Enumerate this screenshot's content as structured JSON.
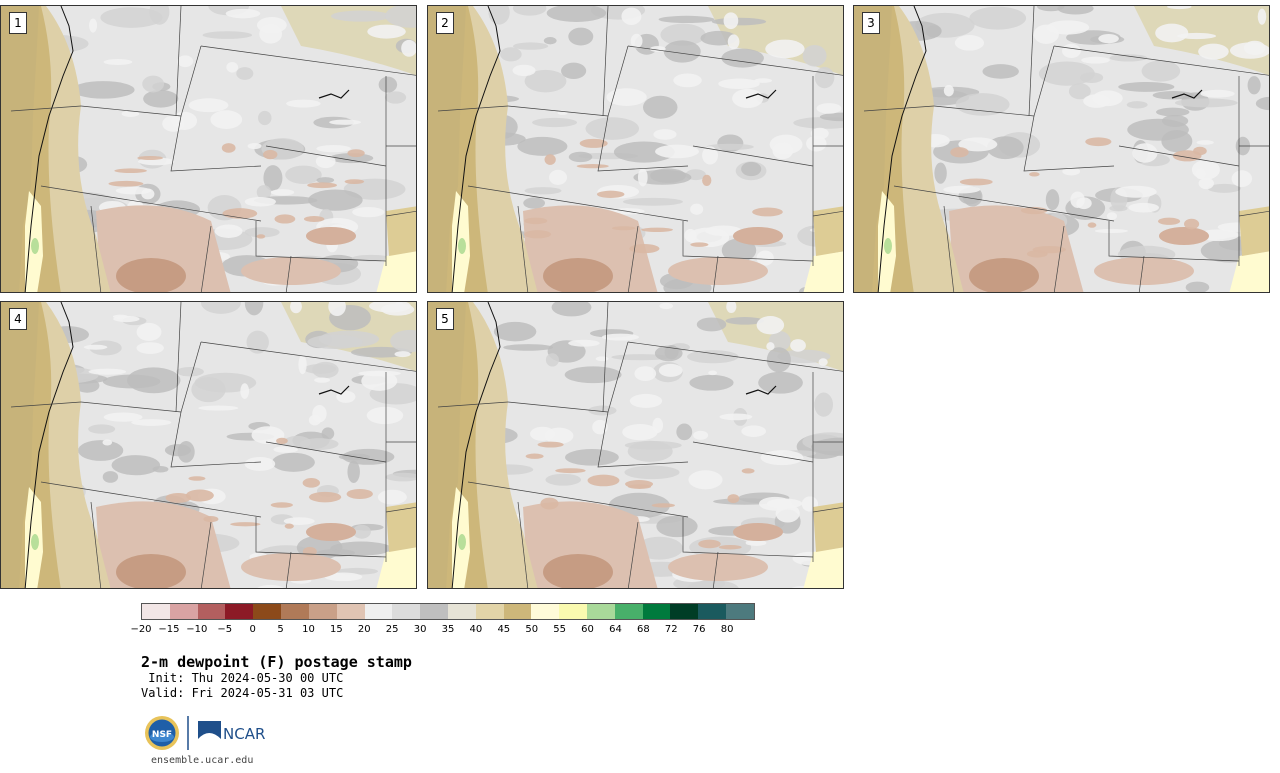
{
  "panels": [
    {
      "label": "1"
    },
    {
      "label": "2"
    },
    {
      "label": "3"
    },
    {
      "label": "4"
    },
    {
      "label": "5"
    }
  ],
  "colorbar": {
    "tick_labels": [
      "−20",
      "−15",
      "−10",
      "−5",
      "0",
      "5",
      "10",
      "15",
      "20",
      "25",
      "30",
      "35",
      "40",
      "45",
      "50",
      "55",
      "60",
      "64",
      "68",
      "72",
      "76",
      "80"
    ],
    "colors": [
      "#f2e6e6",
      "#d9a3a3",
      "#b35f5f",
      "#8c1a26",
      "#8c4a1a",
      "#b07a58",
      "#c9a088",
      "#e0c4b3",
      "#efefef",
      "#dcdcdc",
      "#bfbfbf",
      "#e6e3d6",
      "#e2d4a8",
      "#cdb77a",
      "#fffbd9",
      "#fafab0",
      "#a9d99a",
      "#48b06a",
      "#007a3d",
      "#003d26",
      "#1a5a5e",
      "#4d7a7e"
    ]
  },
  "title": "2-m dewpoint (F) postage stamp",
  "init": " Init: Thu 2024-05-30 00 UTC",
  "valid": "Valid: Fri 2024-05-31 03 UTC",
  "logos": {
    "nsf": "NSF",
    "ncar": "NCAR"
  },
  "site": "ensemble.ucar.edu"
}
